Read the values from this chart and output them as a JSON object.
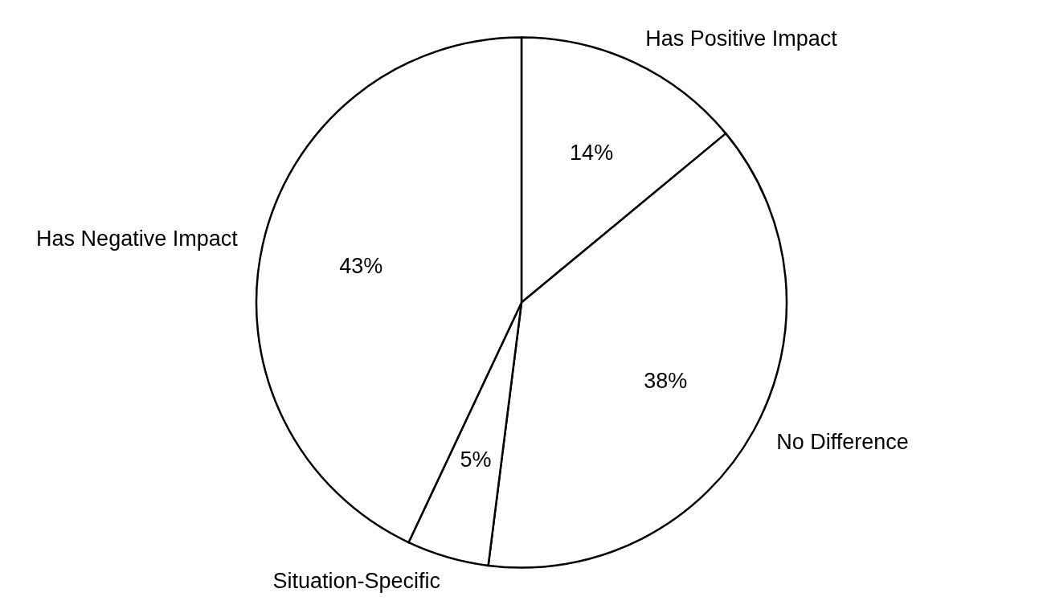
{
  "chart_data": {
    "type": "pie",
    "categories": [
      "Has Positive Impact",
      "No Difference",
      "Situation-Specific",
      "Has Negative Impact"
    ],
    "values": [
      14,
      38,
      5,
      43
    ],
    "value_labels": [
      "14%",
      "38%",
      "5%",
      "43%"
    ],
    "colors": [
      "#ffffff",
      "#ffffff",
      "#ffffff",
      "#ffffff"
    ]
  }
}
